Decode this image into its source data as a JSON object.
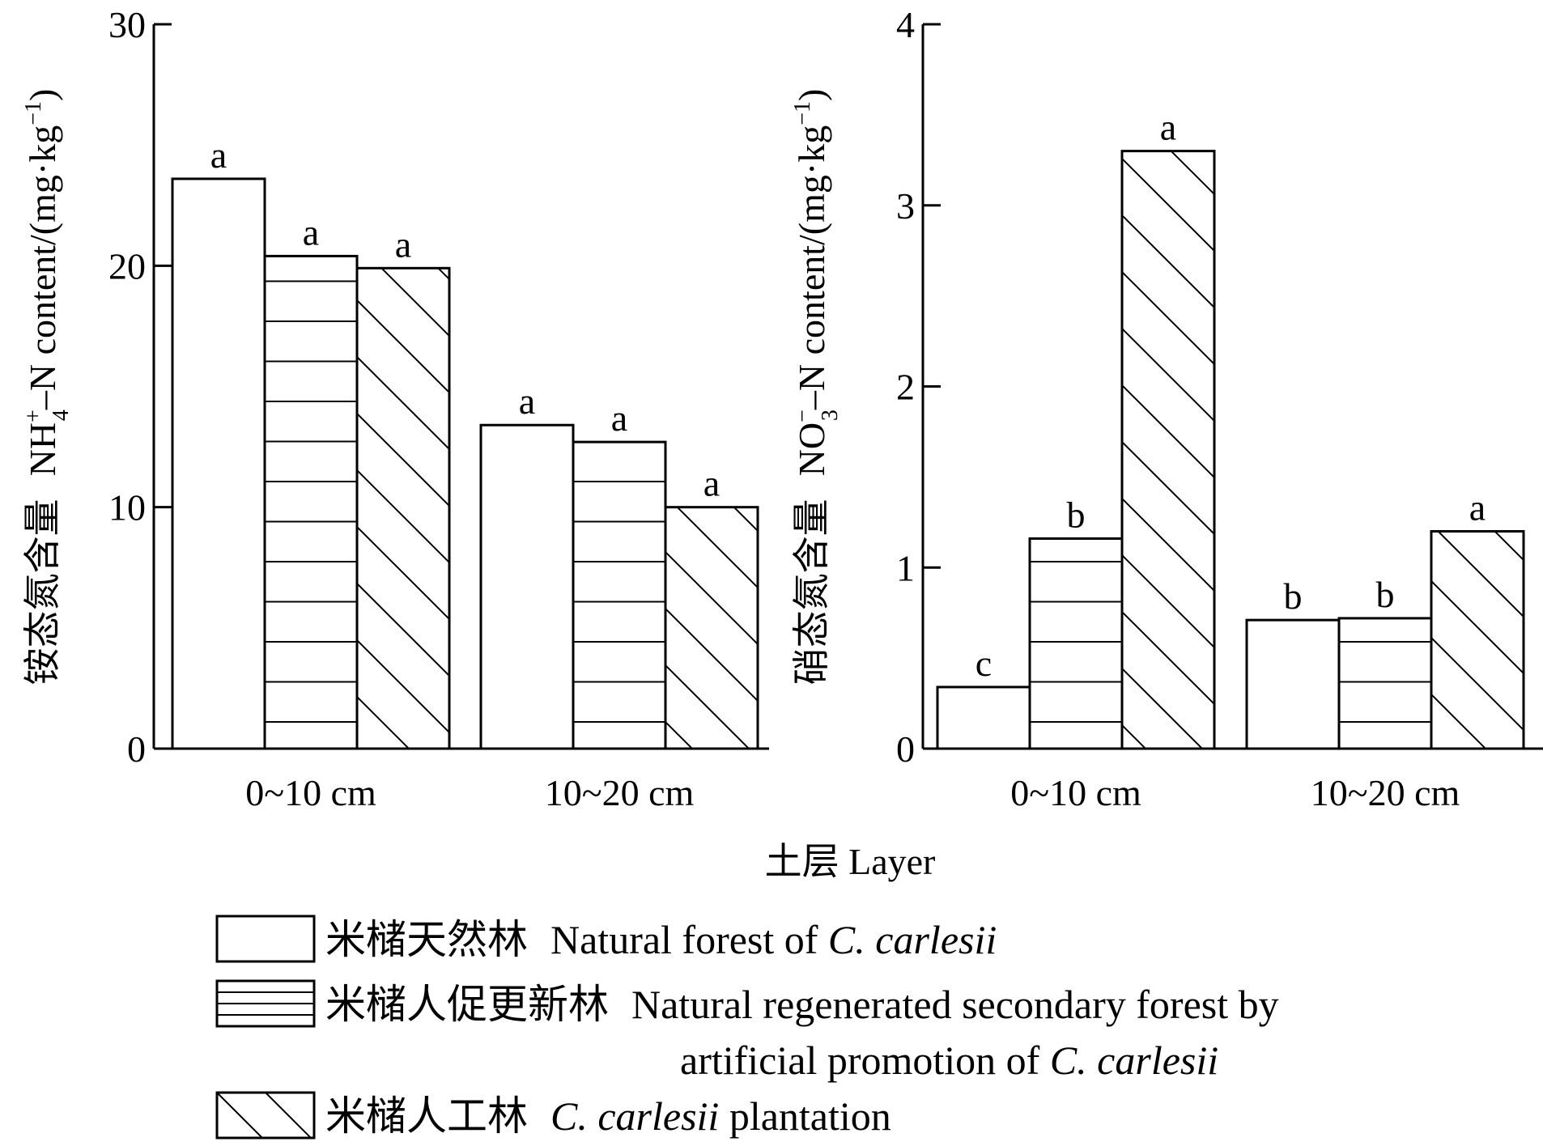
{
  "chart_data": [
    {
      "type": "bar",
      "categories": [
        "0~10 cm",
        "10~20 cm"
      ],
      "series": [
        {
          "name": "米槠天然林 Natural forest of C. carlesii",
          "values": [
            23.6,
            13.4
          ],
          "letters": [
            "a",
            "a"
          ]
        },
        {
          "name": "米槠人促更新林 Natural regenerated secondary forest by artificial promotion of C. carlesii",
          "values": [
            20.4,
            12.7
          ],
          "letters": [
            "a",
            "a"
          ]
        },
        {
          "name": "米槠人工林 C. carlesii plantation",
          "values": [
            19.9,
            10.0
          ],
          "letters": [
            "a",
            "a"
          ]
        }
      ],
      "ylim": [
        0,
        30
      ],
      "yticks": [
        "0",
        "10",
        "20",
        "30"
      ],
      "ylabel_cn": "铵态氮含量",
      "ylabel_pre": "NH",
      "ylabel_sup": "+",
      "ylabel_sub": "4",
      "ylabel_post": "–N content/(mg·kg",
      "ylabel_unit_sup": "−1",
      "ylabel_close": ")"
    },
    {
      "type": "bar",
      "categories": [
        "0~10 cm",
        "10~20 cm"
      ],
      "series": [
        {
          "name": "米槠天然林 Natural forest of C. carlesii",
          "values": [
            0.34,
            0.71
          ],
          "letters": [
            "c",
            "b"
          ]
        },
        {
          "name": "米槠人促更新林 Natural regenerated secondary forest by artificial promotion of C. carlesii",
          "values": [
            1.16,
            0.72
          ],
          "letters": [
            "b",
            "b"
          ]
        },
        {
          "name": "米槠人工林 C. carlesii plantation",
          "values": [
            3.3,
            1.2
          ],
          "letters": [
            "a",
            "a"
          ]
        }
      ],
      "ylim": [
        0,
        4
      ],
      "yticks": [
        "0",
        "1",
        "2",
        "3",
        "4"
      ],
      "ylabel_cn": "硝态氮含量",
      "ylabel_pre": "NO",
      "ylabel_sup": "−",
      "ylabel_sub": "3",
      "ylabel_post": "–N content/(mg·kg",
      "ylabel_unit_sup": "−1",
      "ylabel_close": ")"
    }
  ],
  "xlabel": "土层  Layer",
  "legend": [
    {
      "pattern": "none",
      "cn": "米槠天然林",
      "en_pre": "Natural forest of ",
      "en_italic": "C. carlesii",
      "en_post": ""
    },
    {
      "pattern": "horizontal",
      "cn": "米槠人促更新林",
      "en_pre": "Natural regenerated secondary forest by",
      "en_line2_pre": "artificial promotion of ",
      "en_italic": "C. carlesii",
      "en_post": ""
    },
    {
      "pattern": "diagonal",
      "cn": "米槠人工林",
      "en_pre": "",
      "en_italic": "C. carlesii",
      "en_post": " plantation"
    }
  ]
}
